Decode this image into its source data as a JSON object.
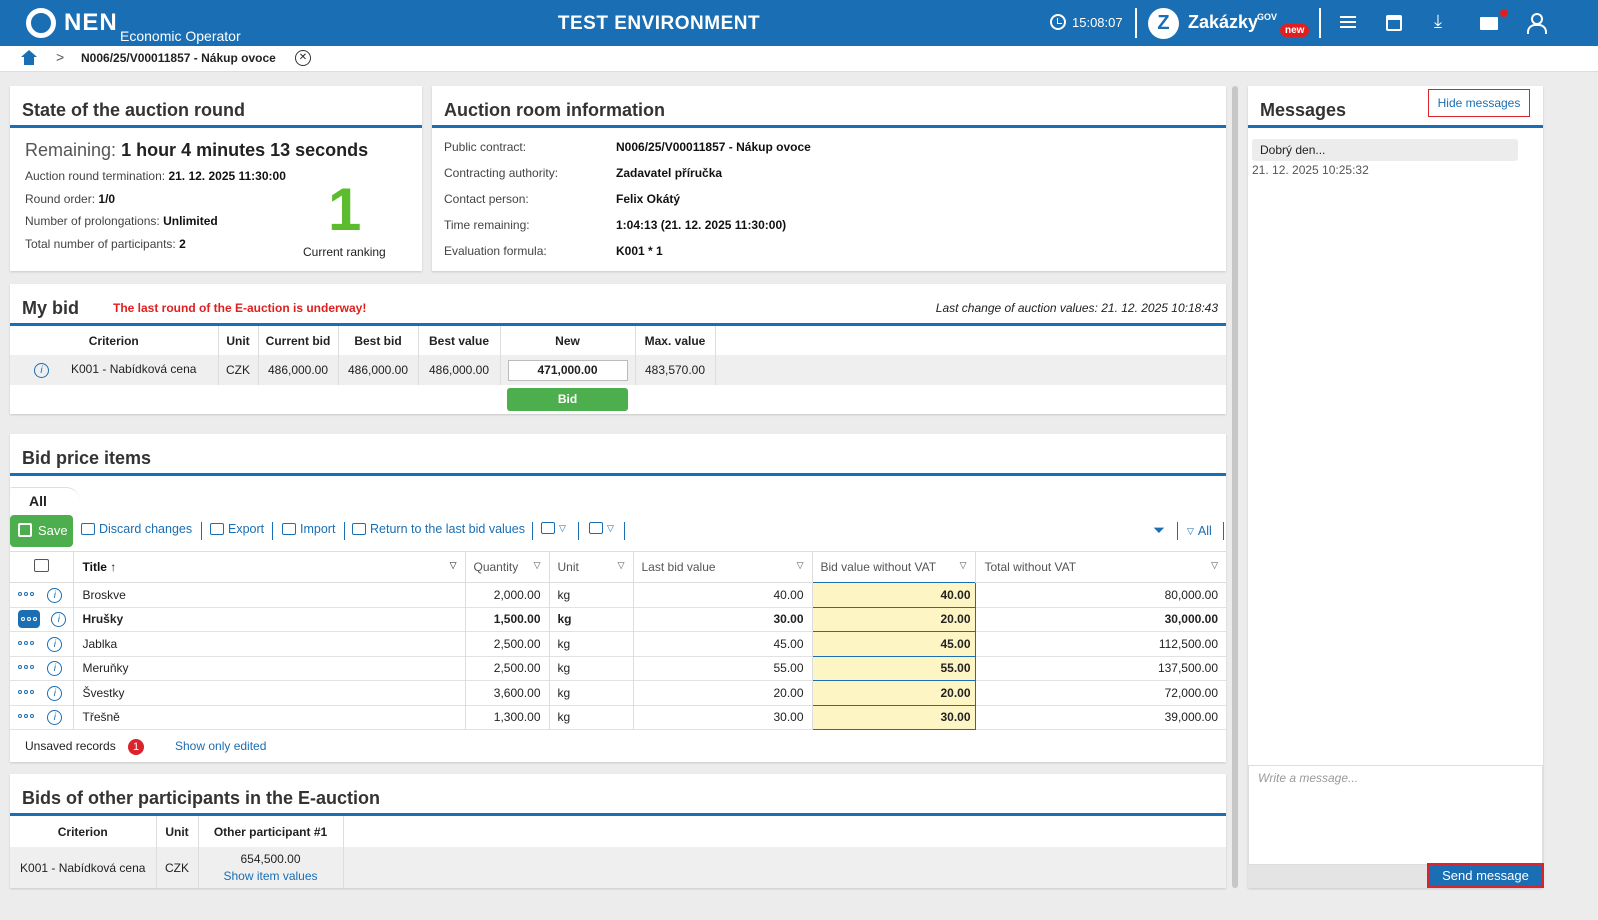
{
  "header": {
    "logo_text": "NEN",
    "logo_sub": "Economic Operator",
    "env_title": "TEST ENVIRONMENT",
    "clock": "15:08:07",
    "zakazky": "Zakázky",
    "zakazky_gov": "GOV",
    "zakazky_new": "new"
  },
  "breadcrumb": {
    "current": "N006/25/V00011857 - Nákup ovoce"
  },
  "state": {
    "title": "State of the auction round",
    "remaining_label": "Remaining:",
    "remaining_value": "1 hour 4 minutes 13 seconds",
    "termination_label": "Auction round termination:",
    "termination_value": "21. 12. 2025 11:30:00",
    "round_label": "Round order:",
    "round_value": "1/0",
    "prolong_label": "Number of prolongations:",
    "prolong_value": "Unlimited",
    "participants_label": "Total number of participants:",
    "participants_value": "2",
    "ranking": "1",
    "ranking_label": "Current ranking"
  },
  "room": {
    "title": "Auction room information",
    "rows": [
      {
        "label": "Public contract:",
        "value": "N006/25/V00011857 - Nákup ovoce"
      },
      {
        "label": "Contracting authority:",
        "value": "Zadavatel příručka"
      },
      {
        "label": "Contact person:",
        "value": "Felix Okátý"
      },
      {
        "label": "Time remaining:",
        "value": "1:04:13 (21. 12. 2025 11:30:00)"
      },
      {
        "label": "Evaluation formula:",
        "value": "K001 * 1"
      }
    ]
  },
  "mybid": {
    "title": "My bid",
    "warning": "The last round of the E-auction is underway!",
    "last_change": "Last change of auction values: 21. 12. 2025 10:18:43",
    "headers": [
      "Criterion",
      "Unit",
      "Current bid",
      "Best bid",
      "Best value",
      "New",
      "Max. value"
    ],
    "row": [
      "K001 - Nabídková cena",
      "CZK",
      "486,000.00",
      "486,000.00",
      "486,000.00",
      "471,000.00",
      "483,570.00"
    ],
    "bid_button": "Bid"
  },
  "items": {
    "title": "Bid price items",
    "tab": "All",
    "toolbar": {
      "save": "Save",
      "discard": "Discard changes",
      "export": "Export",
      "import": "Import",
      "return": "Return to the last bid values",
      "filter_all": "All"
    },
    "headers": [
      "Title",
      "Quantity",
      "Unit",
      "Last bid value",
      "Bid value without VAT",
      "Total without VAT"
    ],
    "rows": [
      [
        "Broskve",
        "2,000.00",
        "kg",
        "40.00",
        "40.00",
        "80,000.00"
      ],
      [
        "Hrušky",
        "1,500.00",
        "kg",
        "30.00",
        "20.00",
        "30,000.00"
      ],
      [
        "Jablka",
        "2,500.00",
        "kg",
        "45.00",
        "45.00",
        "112,500.00"
      ],
      [
        "Meruňky",
        "2,500.00",
        "kg",
        "55.00",
        "55.00",
        "137,500.00"
      ],
      [
        "Švestky",
        "3,600.00",
        "kg",
        "20.00",
        "20.00",
        "72,000.00"
      ],
      [
        "Třešně",
        "1,300.00",
        "kg",
        "30.00",
        "30.00",
        "39,000.00"
      ]
    ],
    "unsaved_label": "Unsaved records",
    "unsaved_count": "1",
    "show_edited": "Show only edited"
  },
  "others": {
    "title": "Bids of other participants in the E-auction",
    "headers": [
      "Criterion",
      "Unit",
      "Other participant #1"
    ],
    "row": [
      "K001 - Nabídková cena",
      "CZK",
      "654,500.00"
    ],
    "show_items": "Show item values"
  },
  "messages": {
    "title": "Messages",
    "hide": "Hide messages",
    "list": [
      {
        "text": "Dobrý den...",
        "time": "21. 12. 2025 10:25:32"
      }
    ],
    "placeholder": "Write a message...",
    "send": "Send message"
  }
}
